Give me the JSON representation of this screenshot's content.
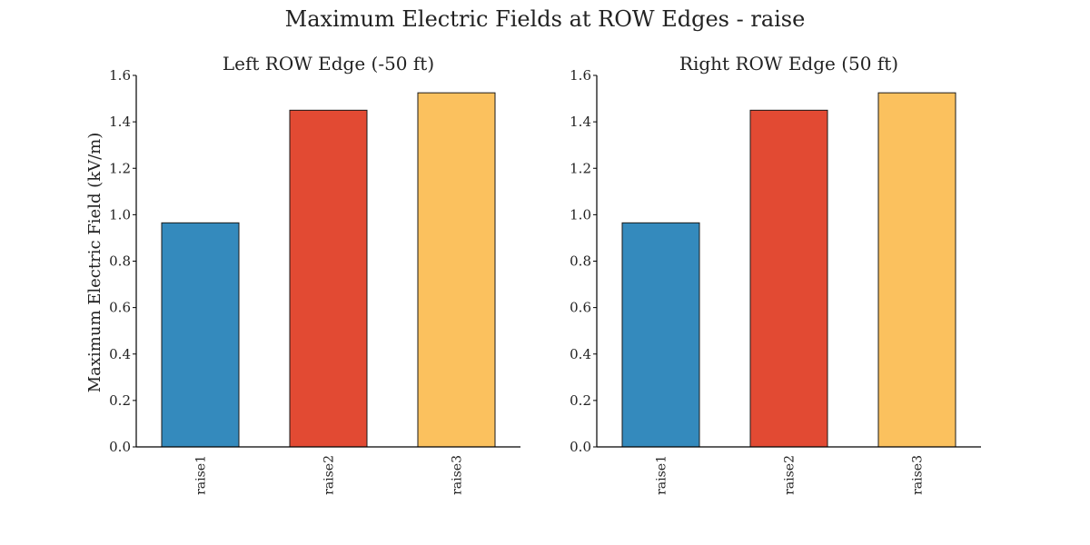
{
  "figure": {
    "title": "Maximum Electric Fields at ROW Edges - raise",
    "ylabel": "Maximum Electric Field (kV/m)"
  },
  "chart_data": [
    {
      "type": "bar",
      "title": "Left ROW Edge (-50 ft)",
      "categories": [
        "raise1",
        "raise2",
        "raise3"
      ],
      "values": [
        0.965,
        1.45,
        1.525
      ],
      "colors": [
        "#348ABD",
        "#E24A33",
        "#FBC15E"
      ],
      "ylim": [
        0,
        1.6
      ],
      "yticks": [
        "0.0",
        "0.2",
        "0.4",
        "0.6",
        "0.8",
        "1.0",
        "1.2",
        "1.4",
        "1.6"
      ],
      "grid": false
    },
    {
      "type": "bar",
      "title": "Right ROW Edge (50 ft)",
      "categories": [
        "raise1",
        "raise2",
        "raise3"
      ],
      "values": [
        0.965,
        1.45,
        1.525
      ],
      "colors": [
        "#348ABD",
        "#E24A33",
        "#FBC15E"
      ],
      "ylim": [
        0,
        1.6
      ],
      "yticks": [
        "0.0",
        "0.2",
        "0.4",
        "0.6",
        "0.8",
        "1.0",
        "1.2",
        "1.4",
        "1.6"
      ],
      "grid": false
    }
  ]
}
